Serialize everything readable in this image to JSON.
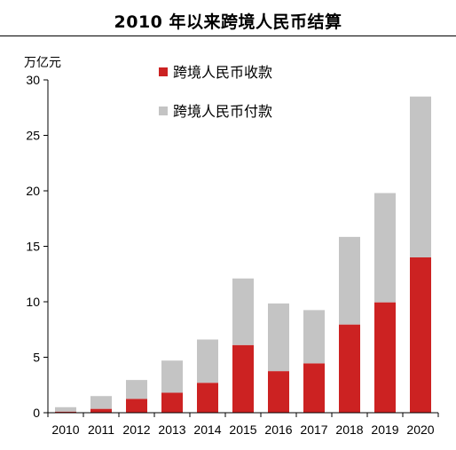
{
  "chart_data": {
    "type": "bar",
    "stacked": true,
    "title": "2010 年以来跨境人民币结算",
    "ylabel": "万亿元",
    "ylim": [
      0,
      30
    ],
    "yticks": [
      0,
      5,
      10,
      15,
      20,
      25,
      30
    ],
    "grid": false,
    "legend_position": "top",
    "categories": [
      "2010",
      "2011",
      "2012",
      "2013",
      "2014",
      "2015",
      "2016",
      "2017",
      "2018",
      "2019",
      "2020"
    ],
    "series": [
      {
        "name": "跨境人民币收款",
        "color": "#cc2222",
        "values": [
          0.1,
          0.35,
          1.25,
          1.8,
          2.7,
          6.1,
          3.75,
          4.45,
          7.95,
          9.95,
          14.0
        ]
      },
      {
        "name": "跨境人民币付款",
        "color": "#c4c4c4",
        "values": [
          0.4,
          1.15,
          1.7,
          2.9,
          3.9,
          6.0,
          6.1,
          4.8,
          7.9,
          9.85,
          14.5
        ]
      }
    ]
  }
}
